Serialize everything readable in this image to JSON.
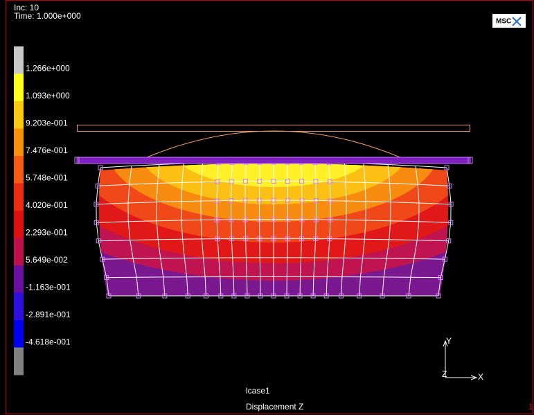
{
  "header": {
    "inc": "Inc:  10",
    "time": "Time:  1.000e+000"
  },
  "logo": "MSC",
  "legend": {
    "labels": [
      "1.266e+000",
      "1.093e+000",
      "9.203e-001",
      "7.476e-001",
      "5.748e-001",
      "4.020e-001",
      "2.293e-001",
      "5.649e-002",
      "-1.163e-001",
      "-2.891e-001",
      "-4.618e-001"
    ]
  },
  "triad": {
    "y": "Y",
    "x": "X",
    "z": "Z"
  },
  "footer": {
    "load_case": "lcase1",
    "quantity": "Displacement Z"
  },
  "corner": "1"
}
